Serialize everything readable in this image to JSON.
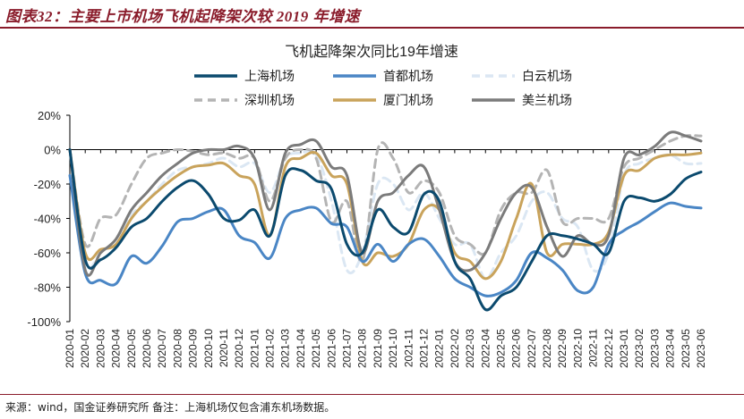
{
  "header": {
    "title": "图表32：主要上市机场飞机起降架次较 2019 年增速"
  },
  "footer": {
    "source": "来源：wind，国金证券研究所  备注：上海机场仅包含浦东机场数据。"
  },
  "chart_data": {
    "type": "line",
    "title": "飞机起降架次同比19年增速",
    "legend_position": "top",
    "x": [
      "2020-01",
      "2020-02",
      "2020-03",
      "2020-04",
      "2020-05",
      "2020-06",
      "2020-07",
      "2020-08",
      "2020-09",
      "2020-10",
      "2020-11",
      "2020-12",
      "2021-01",
      "2021-02",
      "2021-03",
      "2021-04",
      "2021-05",
      "2021-06",
      "2021-07",
      "2021-08",
      "2021-09",
      "2021-10",
      "2021-11",
      "2021-12",
      "2022-01",
      "2022-02",
      "2022-03",
      "2022-04",
      "2022-05",
      "2022-06",
      "2022-07",
      "2022-08",
      "2022-09",
      "2022-10",
      "2022-11",
      "2022-12",
      "2023-01",
      "2023-02",
      "2023-03",
      "2023-04",
      "2023-05",
      "2023-06"
    ],
    "y_ticks": [
      "20%",
      "0%",
      "-20%",
      "-40%",
      "-60%",
      "-80%",
      "-100%"
    ],
    "ylim": [
      -100,
      20
    ],
    "series": [
      {
        "name": "上海机场",
        "color": "#0b4a6e",
        "dash": false,
        "width": 3,
        "values": [
          0,
          -64,
          -64,
          -57,
          -45,
          -40,
          -30,
          -22,
          -18,
          -26,
          -40,
          -41,
          -35,
          -50,
          -15,
          -12,
          -18,
          -23,
          -55,
          -60,
          -35,
          -45,
          -48,
          -26,
          -30,
          -65,
          -75,
          -93,
          -85,
          -80,
          -65,
          -50,
          -50,
          -52,
          -55,
          -60,
          -30,
          -28,
          -30,
          -26,
          -17,
          -13
        ]
      },
      {
        "name": "首都机场",
        "color": "#4a86c5",
        "dash": false,
        "width": 3,
        "values": [
          -15,
          -72,
          -76,
          -78,
          -62,
          -66,
          -56,
          -42,
          -40,
          -36,
          -35,
          -50,
          -54,
          -63,
          -40,
          -35,
          -34,
          -43,
          -45,
          -65,
          -55,
          -65,
          -55,
          -52,
          -62,
          -75,
          -80,
          -85,
          -83,
          -76,
          -60,
          -63,
          -70,
          -82,
          -80,
          -55,
          -47,
          -42,
          -36,
          -31,
          -33,
          -34
        ]
      },
      {
        "name": "白云机场",
        "color": "#dbe7f3",
        "dash": true,
        "width": 3,
        "values": [
          0,
          -65,
          -60,
          -52,
          -38,
          -30,
          -20,
          -12,
          -10,
          -8,
          -5,
          -10,
          -8,
          -25,
          -5,
          -2,
          -3,
          -30,
          -70,
          -60,
          -20,
          -20,
          -35,
          -25,
          -40,
          -55,
          -55,
          -75,
          -60,
          -50,
          -30,
          -25,
          -40,
          -45,
          -70,
          -60,
          -15,
          -8,
          -5,
          -3,
          -8,
          -8
        ]
      },
      {
        "name": "深圳机场",
        "color": "#b4b4b4",
        "dash": true,
        "width": 3,
        "values": [
          0,
          -55,
          -40,
          -38,
          -20,
          -5,
          -2,
          0,
          -1,
          -3,
          -2,
          -5,
          -5,
          -30,
          -5,
          0,
          -5,
          -42,
          -30,
          -65,
          0,
          -5,
          -25,
          -18,
          -25,
          -50,
          -55,
          -60,
          -35,
          -25,
          -25,
          -12,
          -42,
          -40,
          -40,
          -40,
          -10,
          -5,
          0,
          5,
          8,
          8
        ]
      },
      {
        "name": "厦门机场",
        "color": "#c9a35b",
        "dash": false,
        "width": 3,
        "values": [
          0,
          -60,
          -58,
          -55,
          -40,
          -30,
          -22,
          -15,
          -10,
          -9,
          -8,
          -15,
          -20,
          -50,
          -10,
          -5,
          -2,
          -15,
          -20,
          -65,
          -60,
          -62,
          -55,
          -35,
          -35,
          -60,
          -65,
          -75,
          -65,
          -40,
          -20,
          -60,
          -55,
          -55,
          -55,
          -48,
          -15,
          -12,
          -5,
          -3,
          -3,
          -2
        ]
      },
      {
        "name": "美兰机场",
        "color": "#7b7b7b",
        "dash": false,
        "width": 3,
        "values": [
          0,
          -70,
          -60,
          -52,
          -35,
          -25,
          -15,
          -8,
          -2,
          0,
          0,
          2,
          -5,
          -35,
          -2,
          3,
          5,
          -10,
          -15,
          -60,
          -30,
          -25,
          -15,
          -10,
          -35,
          -65,
          -70,
          -60,
          -40,
          -25,
          -22,
          -45,
          -62,
          -50,
          -55,
          -50,
          -5,
          -3,
          2,
          10,
          8,
          5
        ]
      }
    ]
  }
}
